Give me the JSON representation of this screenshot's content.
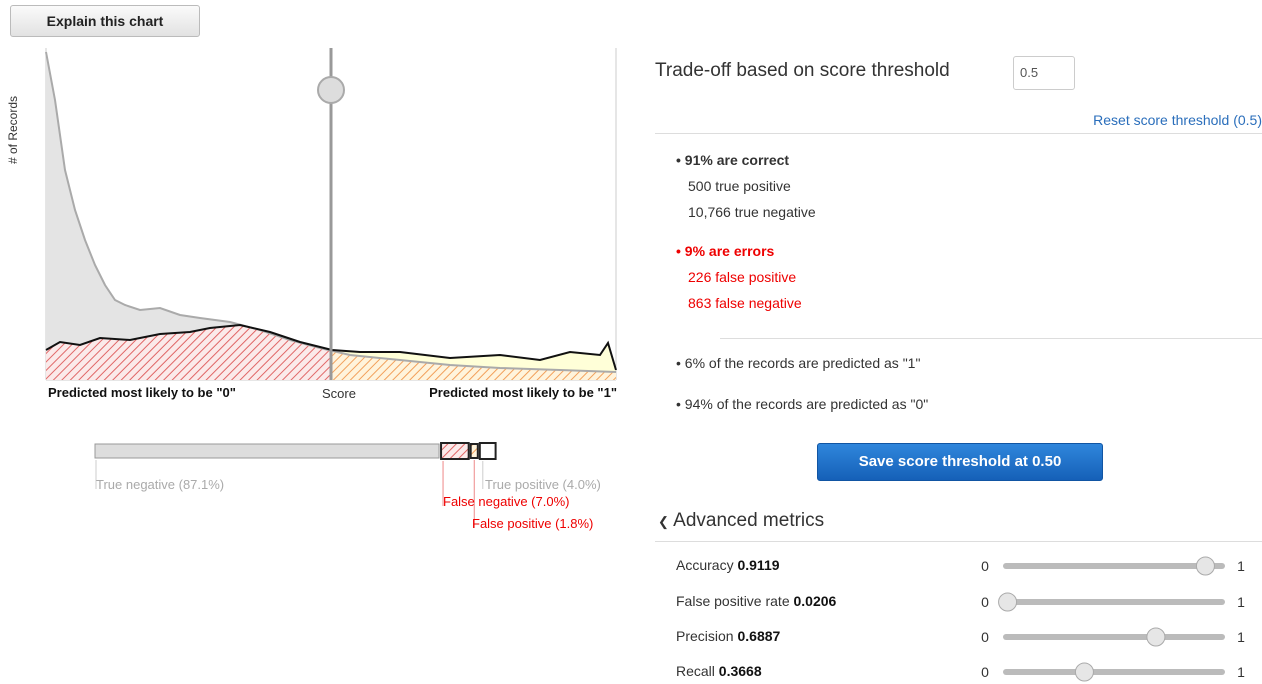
{
  "explain_button": "Explain this chart",
  "chart": {
    "y_label": "# of Records",
    "left_label": "Predicted most likely to be \"0\"",
    "center_label": "Score",
    "right_label": "Predicted most likely to be \"1\""
  },
  "breakdown": [
    {
      "label": "True negative (87.1%)",
      "value": 87.1
    },
    {
      "label": "False negative (7.0%)",
      "value": 7.0
    },
    {
      "label": "False positive (1.8%)",
      "value": 1.8
    },
    {
      "label": "True positive (4.0%)",
      "value": 4.0
    }
  ],
  "tradeoff": {
    "title": "Trade-off based on score threshold",
    "threshold": 0.5,
    "reset_link": "Reset score threshold (0.5)"
  },
  "correct": {
    "heading": "91% are correct",
    "lines": [
      "500 true positive",
      "10,766 true negative"
    ]
  },
  "errors": {
    "heading": "9% are errors",
    "lines": [
      "226 false positive",
      "863 false negative"
    ]
  },
  "predicted": [
    "6% of the records are predicted as \"1\"",
    "94% of the records are predicted as \"0\""
  ],
  "save_button": "Save score threshold at 0.50",
  "advanced": {
    "title": "Advanced metrics",
    "slider_min": 0,
    "slider_max": 1,
    "metrics": [
      {
        "name": "Accuracy",
        "value": 0.9119
      },
      {
        "name": "False positive rate",
        "value": 0.0206
      },
      {
        "name": "Precision",
        "value": 0.6887
      },
      {
        "name": "Recall",
        "value": 0.3668
      }
    ]
  }
}
